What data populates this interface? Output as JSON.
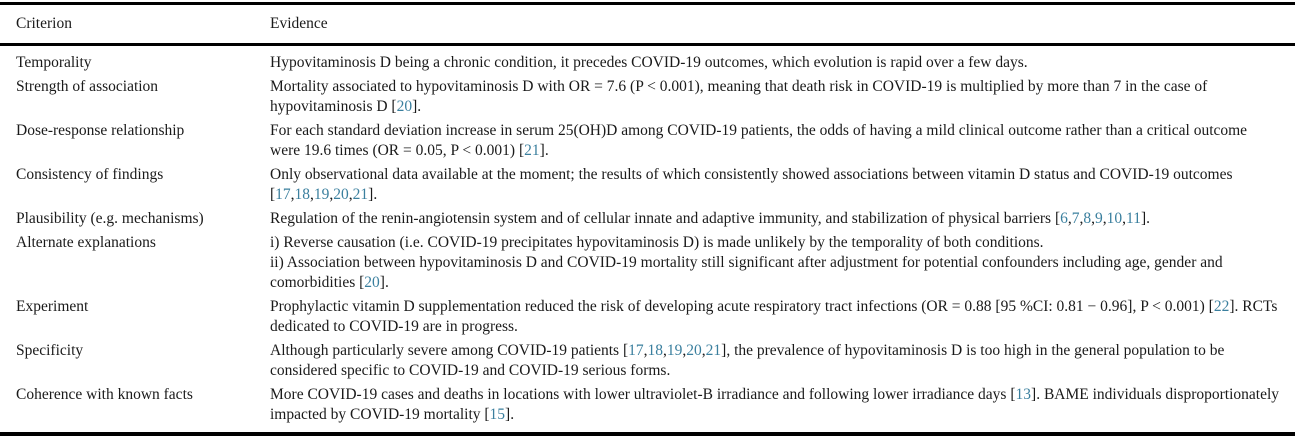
{
  "colors": {
    "citation_link": "#3a7f9e",
    "text": "#1a1a1a",
    "rule": "#000000"
  },
  "table": {
    "columns": [
      "Criterion",
      "Evidence"
    ],
    "rows": [
      {
        "criterion": "Temporality",
        "evidence": [
          "Hypovitaminosis D being a chronic condition, it precedes COVID-19 outcomes, which evolution is rapid over a few days."
        ]
      },
      {
        "criterion": "Strength of association",
        "evidence": [
          "Mortality associated to hypovitaminosis D with OR = 7.6 (P < 0.001), meaning that death risk in COVID-19 is multiplied by more than 7 in the case of hypovitaminosis D [20]."
        ]
      },
      {
        "criterion": "Dose-response relationship",
        "evidence": [
          "For each standard deviation increase in serum 25(OH)D among COVID-19 patients, the odds of having a mild clinical outcome rather than a critical outcome were 19.6 times (OR = 0.05, P < 0.001) [21]."
        ]
      },
      {
        "criterion": "Consistency of findings",
        "evidence": [
          "Only observational data available at the moment; the results of which consistently showed associations between vitamin D status and COVID-19 outcomes [17,18,19,20,21]."
        ]
      },
      {
        "criterion": "Plausibility (e.g. mechanisms)",
        "evidence": [
          "Regulation of the renin-angiotensin system and of cellular innate and adaptive immunity, and stabilization of physical barriers [6,7,8,9,10,11]."
        ]
      },
      {
        "criterion": "Alternate explanations",
        "evidence": [
          "i) Reverse causation (i.e. COVID-19 precipitates hypovitaminosis D) is made unlikely by the temporality of both conditions.",
          "ii) Association between hypovitaminosis D and COVID-19 mortality still significant after adjustment for potential confounders including age, gender and comorbidities [20]."
        ]
      },
      {
        "criterion": "Experiment",
        "evidence": [
          "Prophylactic vitamin D supplementation reduced the risk of developing acute respiratory tract infections (OR = 0.88 [95 %CI: 0.81 − 0.96], P < 0.001) [22]. RCTs dedicated to COVID-19 are in progress."
        ]
      },
      {
        "criterion": "Specificity",
        "evidence": [
          "Although particularly severe among COVID-19 patients [17,18,19,20,21], the prevalence of hypovitaminosis D is too high in the general population to be considered specific to COVID-19 and COVID-19 serious forms."
        ]
      },
      {
        "criterion": "Coherence with known facts",
        "evidence": [
          "More COVID-19 cases and deaths in locations with lower ultraviolet-B irradiance and following lower irradiance days [13]. BAME individuals disproportionately impacted by COVID-19 mortality [15]."
        ]
      }
    ]
  }
}
